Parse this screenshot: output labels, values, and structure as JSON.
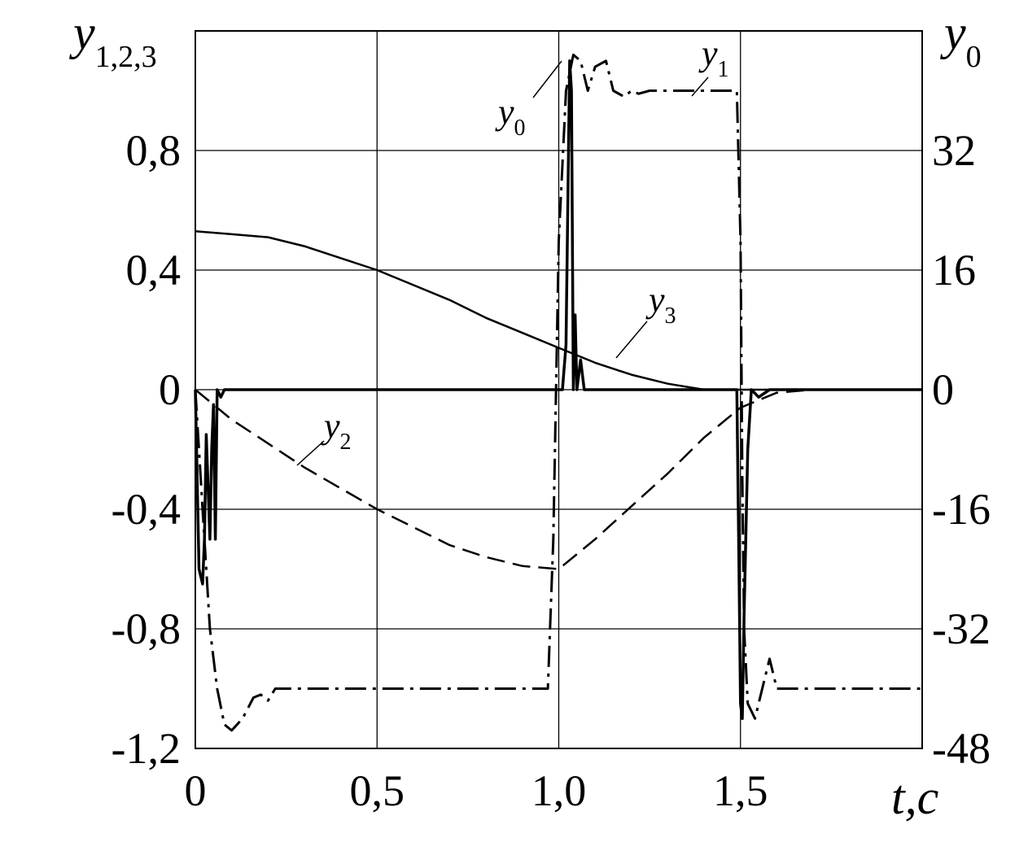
{
  "chart_data": {
    "type": "line",
    "xlabel": {
      "main": "t",
      "sep": ",",
      "unit": "c"
    },
    "ylabel_left": {
      "main": "y",
      "sub": "1,2,3"
    },
    "ylabel_right": {
      "main": "y",
      "sub": "0"
    },
    "xlim": [
      0,
      2.0
    ],
    "ylim_left": [
      -1.2,
      1.2
    ],
    "ylim_right": [
      -48,
      48
    ],
    "grid": true,
    "x_ticks": [
      {
        "v": 0,
        "label": "0"
      },
      {
        "v": 0.5,
        "label": "0,5"
      },
      {
        "v": 1.0,
        "label": "1,0"
      },
      {
        "v": 1.5,
        "label": "1,5"
      }
    ],
    "y_ticks_left": [
      {
        "v": 0.8,
        "label": "0,8"
      },
      {
        "v": 0.4,
        "label": "0,4"
      },
      {
        "v": 0,
        "label": "0"
      },
      {
        "v": -0.4,
        "label": "-0,4"
      },
      {
        "v": -0.8,
        "label": "-0,8"
      },
      {
        "v": -1.2,
        "label": "-1,2"
      }
    ],
    "y_ticks_right": [
      {
        "v": 32,
        "label": "32"
      },
      {
        "v": 16,
        "label": "16"
      },
      {
        "v": 0,
        "label": "0"
      },
      {
        "v": -16,
        "label": "-16"
      },
      {
        "v": -32,
        "label": "-32"
      },
      {
        "v": -48,
        "label": "-48"
      }
    ],
    "series": [
      {
        "name": "y1",
        "label_main": "y",
        "label_sub": "1",
        "axis": "left",
        "style": "dashdot",
        "x": [
          0,
          0.02,
          0.04,
          0.06,
          0.08,
          0.1,
          0.13,
          0.16,
          0.18,
          0.2,
          0.22,
          0.25,
          0.3,
          0.5,
          0.9,
          0.97,
          0.985,
          1.0,
          1.02,
          1.04,
          1.06,
          1.08,
          1.1,
          1.13,
          1.15,
          1.18,
          1.2,
          1.22,
          1.25,
          1.3,
          1.4,
          1.49,
          1.5,
          1.505,
          1.51,
          1.52,
          1.54,
          1.56,
          1.58,
          1.6,
          1.62,
          1.65,
          1.7,
          1.75,
          1.8,
          2.0
        ],
        "y": [
          0,
          -0.4,
          -0.8,
          -1.0,
          -1.12,
          -1.14,
          -1.1,
          -1.03,
          -1.02,
          -1.04,
          -1.0,
          -1.0,
          -1.0,
          -1.0,
          -1.0,
          -1.0,
          -0.5,
          0.5,
          1.0,
          1.12,
          1.1,
          1.0,
          1.08,
          1.1,
          1.0,
          0.98,
          1.0,
          0.99,
          1.0,
          1.0,
          1.0,
          1.0,
          0.5,
          -0.3,
          -0.8,
          -1.05,
          -1.1,
          -1.0,
          -0.9,
          -1.0,
          -1.0,
          -1.0,
          -1.0,
          -1.0,
          -1.0,
          -1.0
        ]
      },
      {
        "name": "y2",
        "label_main": "y",
        "label_sub": "2",
        "axis": "left",
        "style": "dashed",
        "x": [
          0,
          0.1,
          0.2,
          0.3,
          0.4,
          0.5,
          0.6,
          0.7,
          0.8,
          0.9,
          1.0,
          1.1,
          1.2,
          1.3,
          1.4,
          1.5,
          1.6,
          1.7,
          1.8,
          2.0
        ],
        "y": [
          0,
          -0.1,
          -0.18,
          -0.26,
          -0.33,
          -0.4,
          -0.46,
          -0.52,
          -0.56,
          -0.59,
          -0.6,
          -0.5,
          -0.39,
          -0.28,
          -0.16,
          -0.06,
          -0.01,
          0,
          0,
          0
        ]
      },
      {
        "name": "y3",
        "label_main": "y",
        "label_sub": "3",
        "axis": "left",
        "style": "solid",
        "x": [
          0,
          0.1,
          0.2,
          0.3,
          0.4,
          0.5,
          0.6,
          0.7,
          0.8,
          0.9,
          1.0,
          1.1,
          1.2,
          1.3,
          1.4,
          1.5,
          1.6,
          1.7,
          1.8,
          2.0
        ],
        "y": [
          0.53,
          0.52,
          0.51,
          0.48,
          0.44,
          0.4,
          0.35,
          0.3,
          0.24,
          0.19,
          0.14,
          0.09,
          0.05,
          0.02,
          0.0,
          0,
          0,
          0,
          0,
          0
        ]
      },
      {
        "name": "y0",
        "label_main": "y",
        "label_sub": "0",
        "axis": "right",
        "style": "solid-thick",
        "x": [
          0,
          0.01,
          0.02,
          0.025,
          0.03,
          0.04,
          0.045,
          0.05,
          0.055,
          0.06,
          0.07,
          0.08,
          0.1,
          0.15,
          0.2,
          0.9,
          0.97,
          0.98,
          0.99,
          1.0,
          1.01,
          1.02,
          1.03,
          1.035,
          1.04,
          1.045,
          1.05,
          1.06,
          1.07,
          1.09,
          1.1,
          1.11,
          1.2,
          1.49,
          1.495,
          1.5,
          1.505,
          1.51,
          1.52,
          1.53,
          1.55,
          1.58,
          1.6,
          1.62,
          1.65,
          1.7,
          2.0
        ],
        "y": [
          0,
          -24,
          -26,
          -20,
          -6,
          -20,
          -8,
          -2,
          -20,
          0,
          -1,
          0,
          0,
          0,
          0,
          0,
          0,
          0,
          0,
          0,
          0,
          6,
          44,
          40,
          0,
          10,
          0,
          4,
          0,
          0,
          0,
          0,
          0,
          0,
          -20,
          -42,
          -44,
          -30,
          -8,
          0,
          -1,
          0,
          0,
          0,
          0,
          0,
          0
        ]
      }
    ]
  }
}
